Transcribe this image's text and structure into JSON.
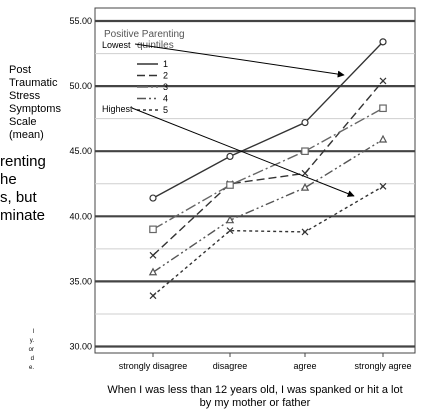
{
  "chart_data": {
    "type": "line",
    "ylabel_lines": [
      "Post",
      "Traumatic",
      "Stress",
      "Symptoms",
      "Scale",
      "(mean)"
    ],
    "xlabel_lines": [
      "When I was less than 12 years old, I was spanked or hit a lot",
      "by my mother or father"
    ],
    "categories": [
      "strongly disagree",
      "disagree",
      "agree",
      "strongly agree"
    ],
    "yticks": [
      "30.00",
      "35.00",
      "40.00",
      "45.00",
      "50.00",
      "55.00"
    ],
    "ylim": [
      29.5,
      56
    ],
    "grid": true,
    "legend": {
      "title_lines": [
        "Positive Parenting",
        "quintiles"
      ],
      "annot_lowest": "Lowest",
      "annot_highest": "Highest",
      "placement": "top-left"
    },
    "series": [
      {
        "name": "1",
        "values": [
          41.4,
          44.6,
          47.2,
          53.4
        ],
        "dash": "",
        "color": "#333333",
        "marker": "circle"
      },
      {
        "name": "2",
        "values": [
          37.0,
          42.5,
          43.3,
          50.4
        ],
        "dash": "8,4",
        "color": "#333333",
        "marker": "x"
      },
      {
        "name": "3",
        "values": [
          39.0,
          42.4,
          45.0,
          48.3
        ],
        "dash": "11,3,2,3",
        "color": "#666666",
        "marker": "square"
      },
      {
        "name": "4",
        "values": [
          35.7,
          39.7,
          42.2,
          45.9
        ],
        "dash": "9,3,2,3,2,3",
        "color": "#555555",
        "marker": "triangle"
      },
      {
        "name": "5",
        "values": [
          33.9,
          38.9,
          38.8,
          42.3
        ],
        "dash": "3,3",
        "color": "#333333",
        "marker": "x"
      }
    ]
  },
  "left_fragments": {
    "large_lines": [
      "renting",
      "he",
      "s, but",
      "minate"
    ],
    "small_lines": [
      "l",
      "y.",
      "or",
      "d",
      "e."
    ]
  }
}
